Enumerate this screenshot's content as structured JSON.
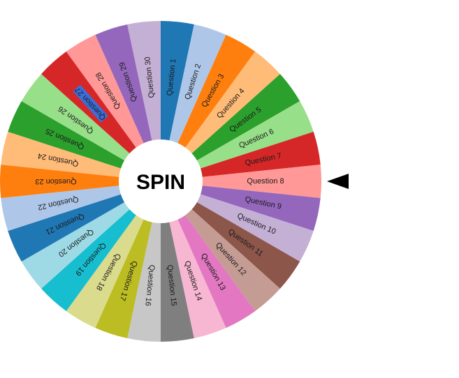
{
  "wheel": {
    "spin_label": "SPIN",
    "selected_index": 26,
    "pointer_icon": "triangle-left-icon",
    "segments": [
      {
        "label": "Question 1",
        "color": "#1f77b4"
      },
      {
        "label": "Question 2",
        "color": "#aec7e8"
      },
      {
        "label": "Question 3",
        "color": "#ff7f0e"
      },
      {
        "label": "Question 4",
        "color": "#ffbb78"
      },
      {
        "label": "Question 5",
        "color": "#2ca02c"
      },
      {
        "label": "Question 6",
        "color": "#98df8a"
      },
      {
        "label": "Question 7",
        "color": "#d62728"
      },
      {
        "label": "Question 8",
        "color": "#ff9896"
      },
      {
        "label": "Question 9",
        "color": "#9467bd"
      },
      {
        "label": "Question 10",
        "color": "#c5b0d5"
      },
      {
        "label": "Question 11",
        "color": "#8c564b"
      },
      {
        "label": "Question 12",
        "color": "#c49c94"
      },
      {
        "label": "Question 13",
        "color": "#e377c2"
      },
      {
        "label": "Question 14",
        "color": "#f7b6d2"
      },
      {
        "label": "Question 15",
        "color": "#7f7f7f"
      },
      {
        "label": "Question 16",
        "color": "#c7c7c7"
      },
      {
        "label": "Question 17",
        "color": "#bcbd22"
      },
      {
        "label": "Question 18",
        "color": "#dbdb8d"
      },
      {
        "label": "Question 19",
        "color": "#17becf"
      },
      {
        "label": "Question 20",
        "color": "#9edae5"
      },
      {
        "label": "Question 21",
        "color": "#1f77b4"
      },
      {
        "label": "Question 22",
        "color": "#aec7e8"
      },
      {
        "label": "Question 23",
        "color": "#ff7f0e"
      },
      {
        "label": "Question 24",
        "color": "#ffbb78"
      },
      {
        "label": "Question 25",
        "color": "#2ca02c"
      },
      {
        "label": "Question 26",
        "color": "#98df8a"
      },
      {
        "label": "Question 27",
        "color": "#d62728"
      },
      {
        "label": "Question 28",
        "color": "#ff9896"
      },
      {
        "label": "Question 29",
        "color": "#9467bd"
      },
      {
        "label": "Question 30",
        "color": "#c5b0d5"
      }
    ],
    "selection_highlight_color": "#3b6fd8",
    "pointer_color": "#000000"
  }
}
